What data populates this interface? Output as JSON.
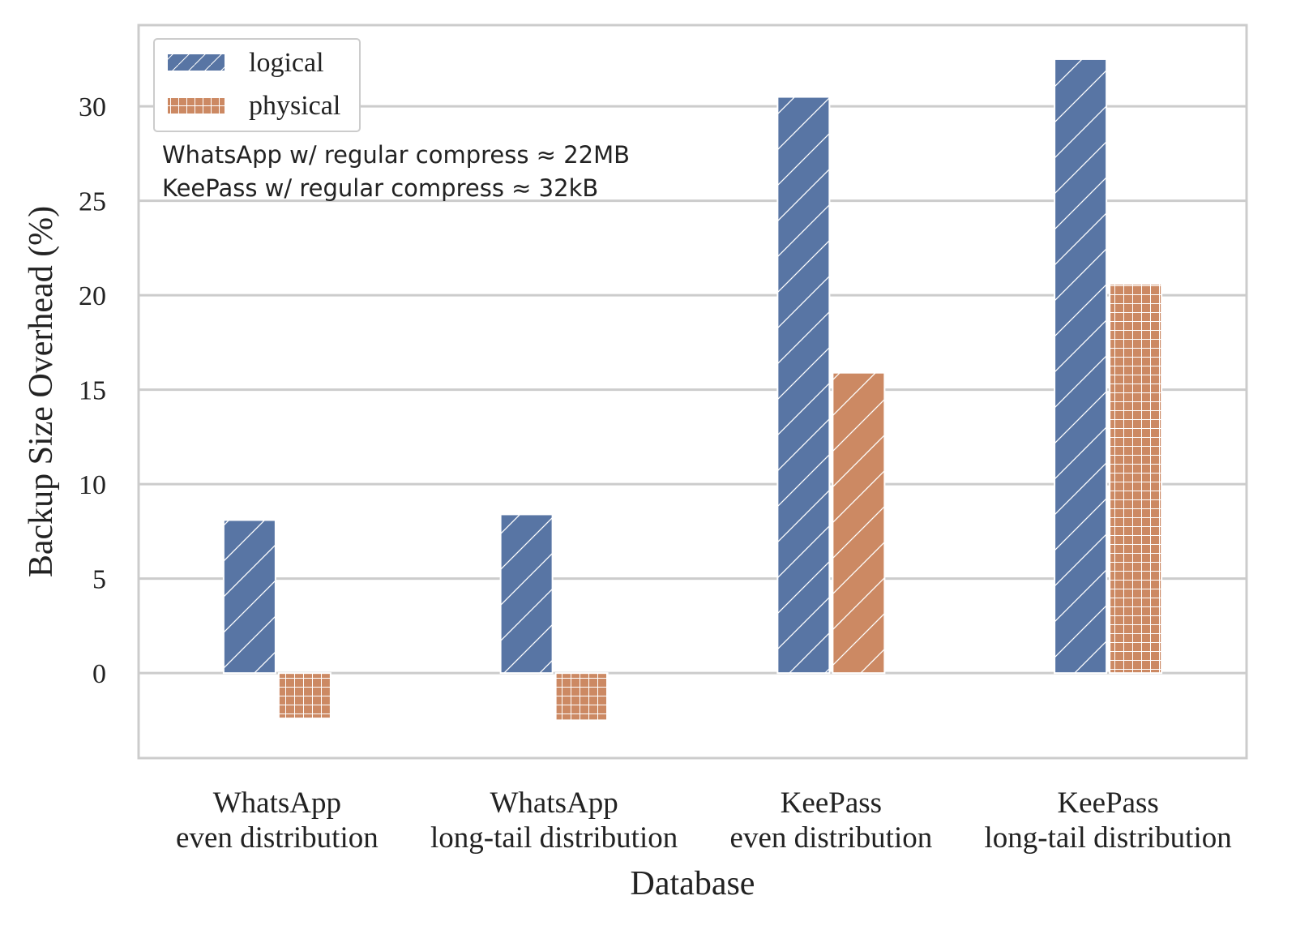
{
  "chart_data": {
    "type": "bar",
    "title": "",
    "xlabel": "Database",
    "ylabel": "Backup Size Overhead (%)",
    "categories": [
      [
        "WhatsApp",
        "even distribution"
      ],
      [
        "WhatsApp",
        "long-tail distribution"
      ],
      [
        "KeePass",
        "even distribution"
      ],
      [
        "KeePass",
        "long-tail distribution"
      ]
    ],
    "series": [
      {
        "name": "logical",
        "color": "#5875a4",
        "values": [
          8.1,
          8.4,
          30.5,
          32.5
        ],
        "hatch": [
          "diag",
          "diag",
          "diag",
          "diag"
        ]
      },
      {
        "name": "physical",
        "color": "#cc8963",
        "values": [
          -2.4,
          -2.5,
          15.9,
          20.6
        ],
        "hatch": [
          "grid",
          "grid",
          "diag",
          "grid"
        ]
      }
    ],
    "ylim": [
      -4.5,
      34.3
    ],
    "yticks": [
      0,
      5,
      10,
      15,
      20,
      25,
      30
    ],
    "grid": true,
    "legend_position": "top-left",
    "annotations": [
      "WhatsApp w/ regular compress ≈ 22MB",
      "KeePass w/ regular compress ≈ 32kB"
    ]
  }
}
